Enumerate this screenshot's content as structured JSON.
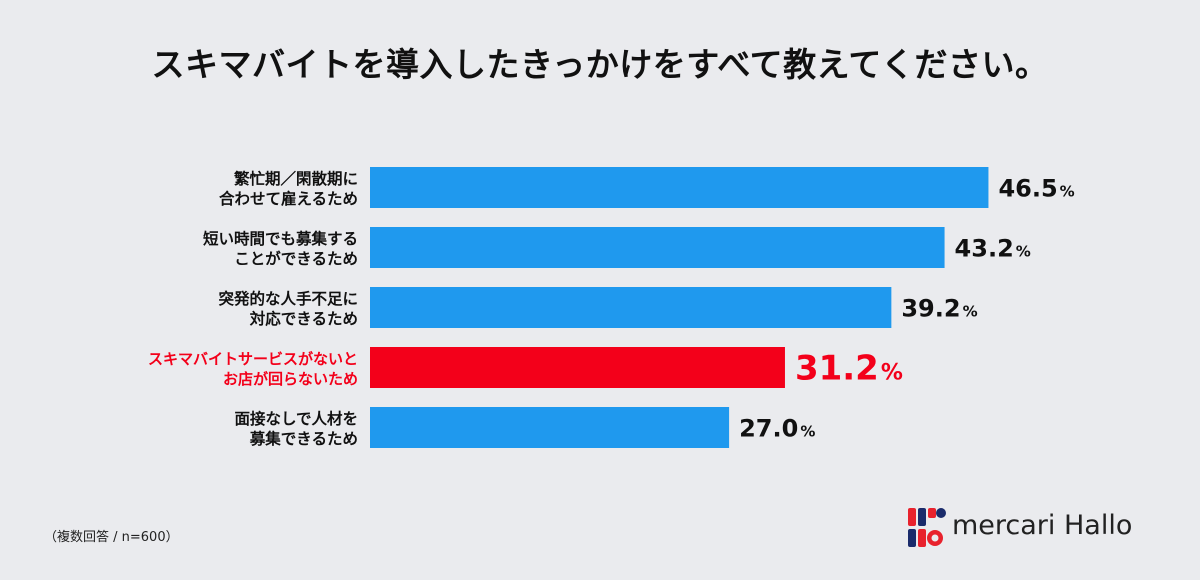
{
  "title": "スキマバイトを導入したきっかけをすべて教えてください。",
  "footnote": "（複数回答 / n=600）",
  "brand": {
    "name": "mercari Hallo",
    "colors": [
      "#e8222d",
      "#1a2b6b"
    ]
  },
  "colors": {
    "bar": "#1f99ee",
    "highlight": "#f3001a",
    "text": "#111111"
  },
  "chart_data": {
    "type": "bar",
    "orientation": "horizontal",
    "unit": "%",
    "categories": [
      [
        "繁忙期／閑散期に",
        "合わせて雇えるため"
      ],
      [
        "短い時間でも募集する",
        "ことができるため"
      ],
      [
        "突発的な人手不足に",
        "対応できるため"
      ],
      [
        "スキマバイトサービスがないと",
        "お店が回らないため"
      ],
      [
        "面接なしで人材を",
        "募集できるため"
      ]
    ],
    "values": [
      46.5,
      43.2,
      39.2,
      31.2,
      27.0
    ],
    "value_labels": [
      "46.5",
      "43.2",
      "39.2",
      "31.2",
      "27.0"
    ],
    "highlight_index": 3,
    "xlim": [
      0,
      100
    ],
    "grid": false,
    "legend": "none"
  }
}
